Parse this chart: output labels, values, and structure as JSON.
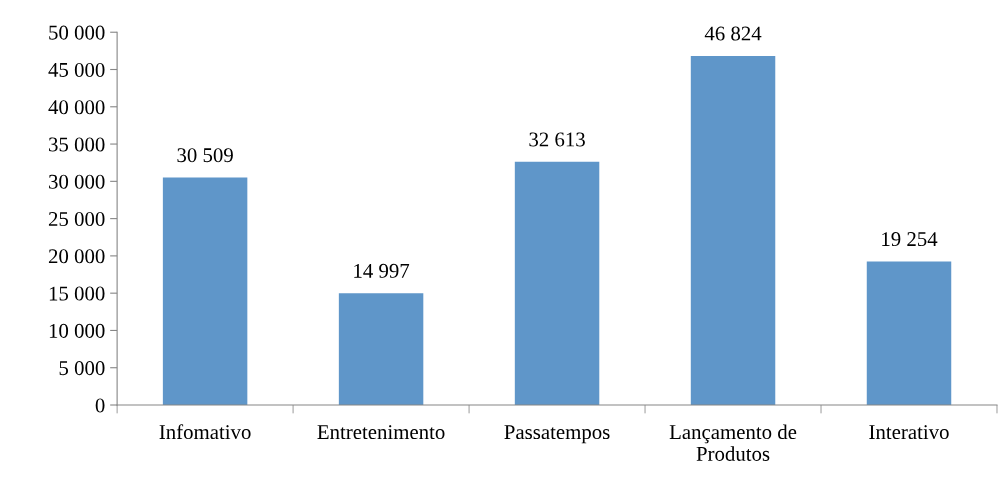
{
  "chart_data": {
    "type": "bar",
    "categories": [
      "Infomativo",
      "Entretenimento",
      "Passatempos",
      "Lançamento de\nProdutos",
      "Interativo"
    ],
    "values": [
      30509,
      14997,
      32613,
      46824,
      19254
    ],
    "value_labels": [
      "30 509",
      "14 997",
      "32 613",
      "46 824",
      "19 254"
    ],
    "color": "#5f96c9",
    "ylim": [
      0,
      50000
    ],
    "yticks": [
      0,
      {
        "value": 5000,
        "label": "5 000"
      },
      {
        "value": 10000,
        "label": "10 000"
      },
      {
        "value": 15000,
        "label": "15 000"
      },
      {
        "value": 20000,
        "label": "20 000"
      },
      {
        "value": 25000,
        "label": "25 000"
      },
      {
        "value": 30000,
        "label": "30 000"
      },
      {
        "value": 35000,
        "label": "35 000"
      },
      {
        "value": 40000,
        "label": "40 000"
      },
      {
        "value": 45000,
        "label": "45 000"
      },
      {
        "value": 50000,
        "label": "50 000"
      }
    ],
    "grid": false,
    "legend": false
  }
}
